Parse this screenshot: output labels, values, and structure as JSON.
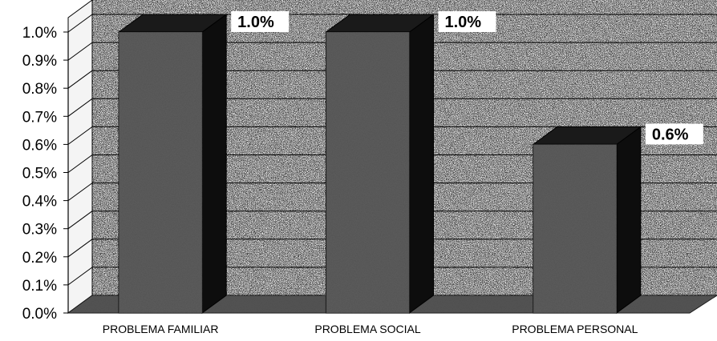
{
  "chart_data": {
    "type": "bar",
    "categories": [
      "PROBLEMA FAMILIAR",
      "PROBLEMA SOCIAL",
      "PROBLEMA PERSONAL"
    ],
    "values": [
      1.0,
      1.0,
      0.6
    ],
    "data_labels": [
      "1.0%",
      "1.0%",
      "0.6%"
    ],
    "y_ticks": [
      "0.0%",
      "0.1%",
      "0.2%",
      "0.3%",
      "0.4%",
      "0.5%",
      "0.6%",
      "0.7%",
      "0.8%",
      "0.9%",
      "1.0%"
    ],
    "ylim": [
      0,
      1.0
    ],
    "grid": true,
    "style": "3d",
    "colors": {
      "bar_front": "#8f8f8f",
      "bar_side": "#0d0d0d",
      "bar_top": "#1a1a1a",
      "floor": "#6e6e6e",
      "wall": "#f4f4f4",
      "grid": "#000000"
    }
  }
}
